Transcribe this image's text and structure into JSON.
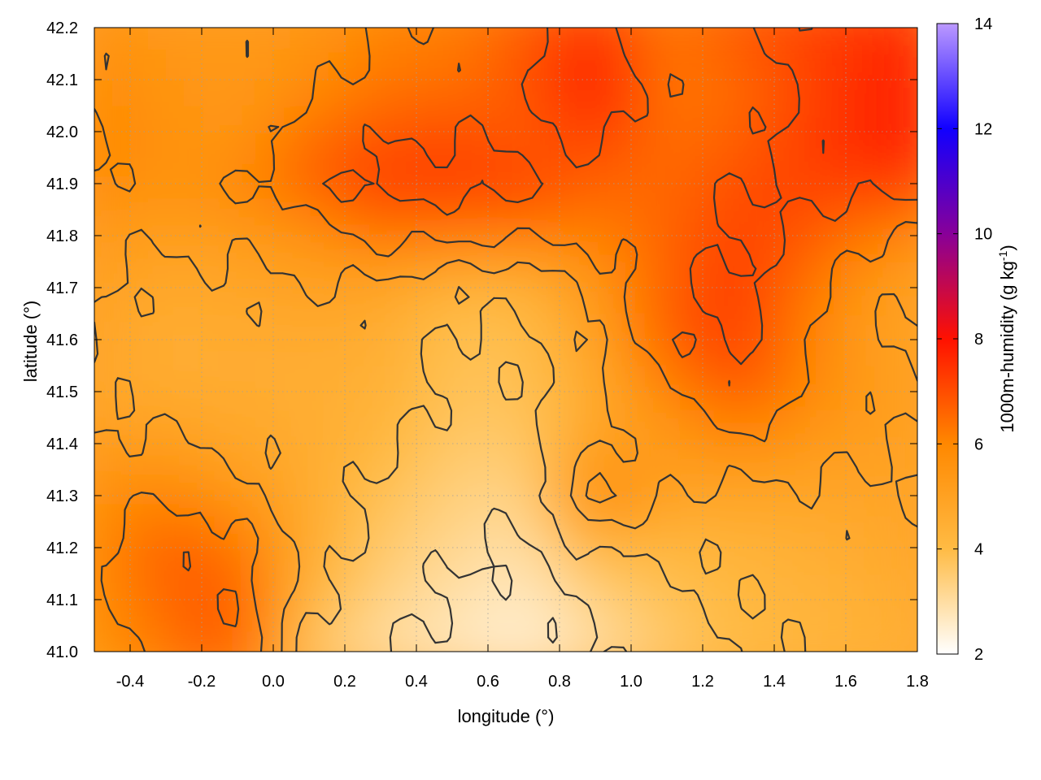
{
  "chart_data": {
    "type": "heatmap",
    "title": "",
    "xlabel": "longitude (°)",
    "ylabel": "latitude (°)",
    "colorbar_label": "1000m-humidity (g kg",
    "colorbar_label_exp": "-1",
    "colorbar_label_close": ")",
    "xlim": [
      -0.5,
      1.8
    ],
    "ylim": [
      41.0,
      42.2
    ],
    "clim": [
      2,
      14
    ],
    "x_ticks": [
      "-0.4",
      "-0.2",
      "0.0",
      "0.2",
      "0.4",
      "0.6",
      "0.8",
      "1.0",
      "1.2",
      "1.4",
      "1.6",
      "1.8"
    ],
    "y_ticks": [
      "41.0",
      "41.1",
      "41.2",
      "41.3",
      "41.4",
      "41.5",
      "41.6",
      "41.7",
      "41.8",
      "41.9",
      "42.0",
      "42.1",
      "42.2"
    ],
    "c_ticks": [
      "2",
      "4",
      "6",
      "8",
      "10",
      "12",
      "14"
    ],
    "grid": true,
    "contour_color": "#333333",
    "colormap": [
      {
        "value": 2,
        "color": "#ffffff"
      },
      {
        "value": 4,
        "color": "#ffbb44"
      },
      {
        "value": 6,
        "color": "#ff8800"
      },
      {
        "value": 8,
        "color": "#ff1100"
      },
      {
        "value": 10,
        "color": "#880099"
      },
      {
        "value": 12,
        "color": "#1100ff"
      },
      {
        "value": 14,
        "color": "#bb99ff"
      }
    ],
    "humidity_field": {
      "lon": [
        -0.5,
        -0.3,
        -0.1,
        0.1,
        0.3,
        0.5,
        0.7,
        0.9,
        1.1,
        1.3,
        1.5,
        1.7,
        1.8
      ],
      "lat": [
        41.0,
        41.1,
        41.2,
        41.3,
        41.4,
        41.5,
        41.6,
        41.7,
        41.8,
        41.9,
        42.0,
        42.1,
        42.2
      ],
      "values": [
        [
          5.5,
          6.3,
          6.8,
          3.6,
          3.0,
          2.7,
          2.4,
          3.0,
          3.6,
          4.0,
          4.2,
          4.4,
          4.5
        ],
        [
          5.8,
          6.6,
          6.9,
          4.2,
          3.3,
          2.9,
          2.6,
          3.3,
          3.8,
          4.1,
          4.3,
          4.5,
          4.6
        ],
        [
          5.9,
          6.8,
          6.4,
          4.6,
          3.6,
          3.2,
          2.9,
          4.2,
          4.1,
          4.3,
          4.5,
          4.7,
          4.8
        ],
        [
          5.7,
          6.0,
          5.4,
          4.6,
          3.8,
          3.4,
          3.2,
          6.3,
          5.0,
          4.8,
          4.8,
          4.9,
          4.9
        ],
        [
          5.2,
          5.1,
          4.8,
          4.6,
          4.2,
          3.6,
          3.6,
          5.0,
          5.2,
          5.8,
          5.3,
          5.0,
          5.0
        ],
        [
          4.8,
          4.6,
          4.6,
          4.5,
          4.4,
          3.8,
          3.8,
          4.6,
          5.9,
          6.9,
          5.9,
          5.2,
          5.1
        ],
        [
          4.9,
          4.5,
          4.6,
          4.6,
          4.6,
          3.8,
          3.9,
          5.0,
          6.8,
          7.3,
          6.0,
          5.0,
          4.9
        ],
        [
          5.1,
          4.7,
          4.8,
          5.0,
          4.8,
          4.2,
          4.2,
          5.4,
          6.7,
          7.3,
          6.3,
          5.2,
          5.0
        ],
        [
          5.3,
          5.1,
          5.2,
          5.5,
          6.3,
          6.2,
          6.1,
          6.1,
          6.6,
          7.2,
          6.8,
          6.0,
          5.8
        ],
        [
          6.0,
          5.5,
          6.0,
          6.8,
          7.4,
          7.3,
          7.3,
          6.6,
          6.5,
          7.0,
          7.2,
          7.3,
          7.5
        ],
        [
          6.1,
          5.6,
          5.4,
          6.4,
          6.8,
          7.0,
          6.6,
          7.3,
          6.4,
          6.6,
          7.3,
          7.8,
          7.9
        ],
        [
          5.8,
          5.5,
          5.3,
          5.7,
          6.3,
          6.3,
          6.9,
          8.1,
          6.2,
          6.5,
          7.1,
          7.7,
          7.8
        ],
        [
          5.6,
          5.4,
          5.3,
          5.5,
          6.1,
          6.2,
          6.7,
          7.4,
          6.3,
          6.9,
          7.3,
          7.5,
          7.6
        ]
      ]
    }
  }
}
